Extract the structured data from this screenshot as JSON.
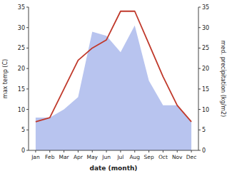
{
  "chart_data": {
    "type": "line",
    "xlabel": "date (month)",
    "ylabel": "max temp (C)",
    "y2label": "med. precipitation (kg/m2)",
    "categories": [
      "Jan",
      "Feb",
      "Mar",
      "Apr",
      "May",
      "Jun",
      "Jul",
      "Aug",
      "Sep",
      "Oct",
      "Nov",
      "Dec"
    ],
    "series": [
      {
        "type": "area",
        "axis": "y2",
        "color": "#b8c4ef",
        "values": [
          8,
          8,
          10,
          13,
          29,
          28,
          24,
          30.5,
          17,
          11,
          11,
          7
        ]
      },
      {
        "type": "line",
        "color": "#c0392b",
        "values": [
          7,
          8,
          15,
          22,
          25,
          27,
          34,
          34,
          26,
          18,
          11,
          7
        ]
      }
    ],
    "ylim": [
      0,
      35
    ],
    "yticks": [
      0,
      5,
      10,
      15,
      20,
      25,
      30,
      35
    ],
    "y2lim": [
      0,
      35
    ],
    "y2ticks": [
      0,
      5,
      10,
      15,
      20,
      25,
      30,
      35
    ],
    "grid": false
  }
}
